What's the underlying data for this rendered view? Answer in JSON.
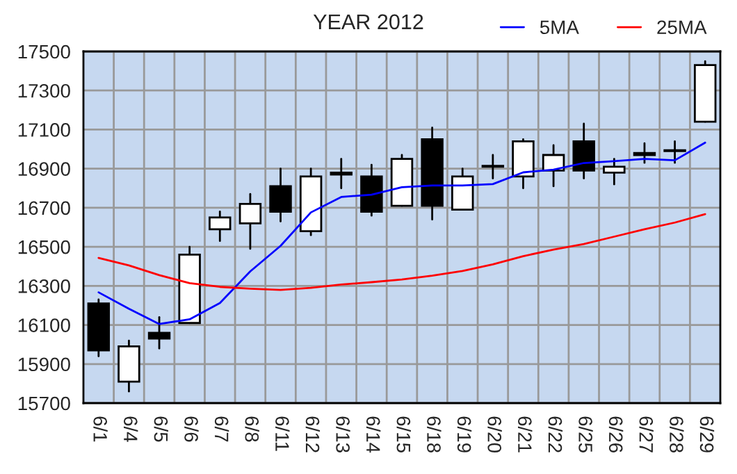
{
  "chart_data": {
    "type": "candlestick",
    "title": "YEAR 2012",
    "categories": [
      "6/1",
      "6/4",
      "6/5",
      "6/6",
      "6/7",
      "6/8",
      "6/11",
      "6/12",
      "6/13",
      "6/14",
      "6/15",
      "6/18",
      "6/19",
      "6/20",
      "6/21",
      "6/22",
      "6/25",
      "6/26",
      "6/27",
      "6/28",
      "6/29"
    ],
    "ohlc": [
      [
        16210,
        16230,
        15940,
        15970
      ],
      [
        15810,
        16020,
        15760,
        15990
      ],
      [
        16060,
        16140,
        15980,
        16030
      ],
      [
        16110,
        16500,
        16110,
        16460
      ],
      [
        16590,
        16680,
        16530,
        16650
      ],
      [
        16620,
        16770,
        16490,
        16720
      ],
      [
        16810,
        16900,
        16630,
        16680
      ],
      [
        16580,
        16900,
        16560,
        16860
      ],
      [
        16880,
        16950,
        16800,
        16870
      ],
      [
        16860,
        16920,
        16660,
        16680
      ],
      [
        16710,
        16970,
        16710,
        16950
      ],
      [
        17050,
        17110,
        16640,
        16710
      ],
      [
        16690,
        16900,
        16690,
        16860
      ],
      [
        16910,
        16970,
        16850,
        16910
      ],
      [
        16860,
        17050,
        16800,
        17040
      ],
      [
        16890,
        17020,
        16810,
        16970
      ],
      [
        17040,
        17130,
        16850,
        16890
      ],
      [
        16880,
        16950,
        16820,
        16910
      ],
      [
        16980,
        17030,
        16930,
        16970
      ],
      [
        16990,
        17040,
        16930,
        16990
      ],
      [
        17140,
        17450,
        17140,
        17430
      ]
    ],
    "series": [
      {
        "name": "5MA",
        "type": "line",
        "color": "#0000ff",
        "values": [
          16267,
          16183,
          16105,
          16129,
          16212,
          16374,
          16505,
          16676,
          16755,
          16767,
          16805,
          16814,
          16814,
          16821,
          16881,
          16895,
          16929,
          16938,
          16950,
          16943,
          17033
        ]
      },
      {
        "name": "25MA",
        "type": "line",
        "color": "#ff0000",
        "values": [
          16443,
          16405,
          16355,
          16314,
          16295,
          16286,
          16279,
          16290,
          16307,
          16319,
          16333,
          16352,
          16376,
          16410,
          16452,
          16486,
          16514,
          16552,
          16590,
          16624,
          16667
        ]
      }
    ],
    "ylim": [
      15700,
      17500
    ],
    "yticks": [
      15700,
      15900,
      16100,
      16300,
      16500,
      16700,
      16900,
      17100,
      17300,
      17500
    ],
    "grid": true,
    "legend": "top right"
  }
}
